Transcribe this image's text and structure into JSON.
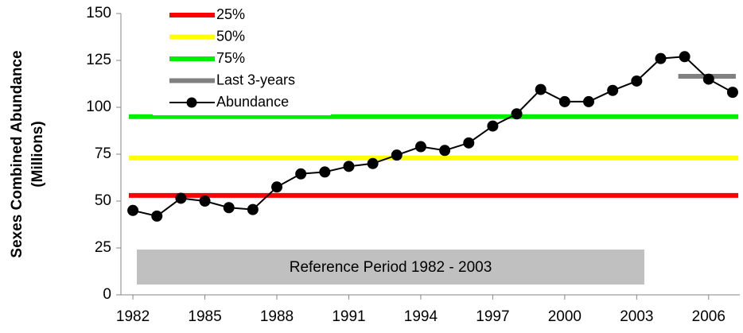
{
  "chart_data": {
    "type": "line",
    "ylabel": [
      "Sexes Combined Abundance",
      "(Millions)"
    ],
    "annotation": "Reference Period 1982 - 2003",
    "x": [
      1982,
      1983,
      1984,
      1985,
      1986,
      1987,
      1988,
      1989,
      1990,
      1991,
      1992,
      1993,
      1994,
      1995,
      1996,
      1997,
      1998,
      1999,
      2000,
      2001,
      2002,
      2003,
      2004,
      2005,
      2006,
      2007
    ],
    "series": [
      {
        "name": "Abundance",
        "color": "#000000",
        "values": [
          45,
          42,
          51.5,
          50,
          46.5,
          45.5,
          57.5,
          64.5,
          65.5,
          68.5,
          70,
          74.5,
          79,
          77,
          81,
          90,
          96.5,
          109.5,
          103,
          103,
          109,
          114,
          126,
          127,
          115,
          108
        ]
      }
    ],
    "reference_lines": [
      {
        "name": "25%",
        "color": "#ff0000",
        "value": 53
      },
      {
        "name": "50%",
        "color": "#ffff00",
        "value": 73
      },
      {
        "name": "75%",
        "color": "#00ee00",
        "value": 95
      }
    ],
    "last_years": {
      "name": "Last 3-years",
      "color": "#808080",
      "value": 116.5
    },
    "xlim": [
      1981.5,
      2007.3
    ],
    "xticks": [
      1982,
      1985,
      1988,
      1991,
      1994,
      1997,
      2000,
      2003,
      2006
    ],
    "ylim": [
      0,
      150
    ],
    "yticks": [
      0,
      25,
      50,
      75,
      100,
      125,
      150
    ]
  }
}
